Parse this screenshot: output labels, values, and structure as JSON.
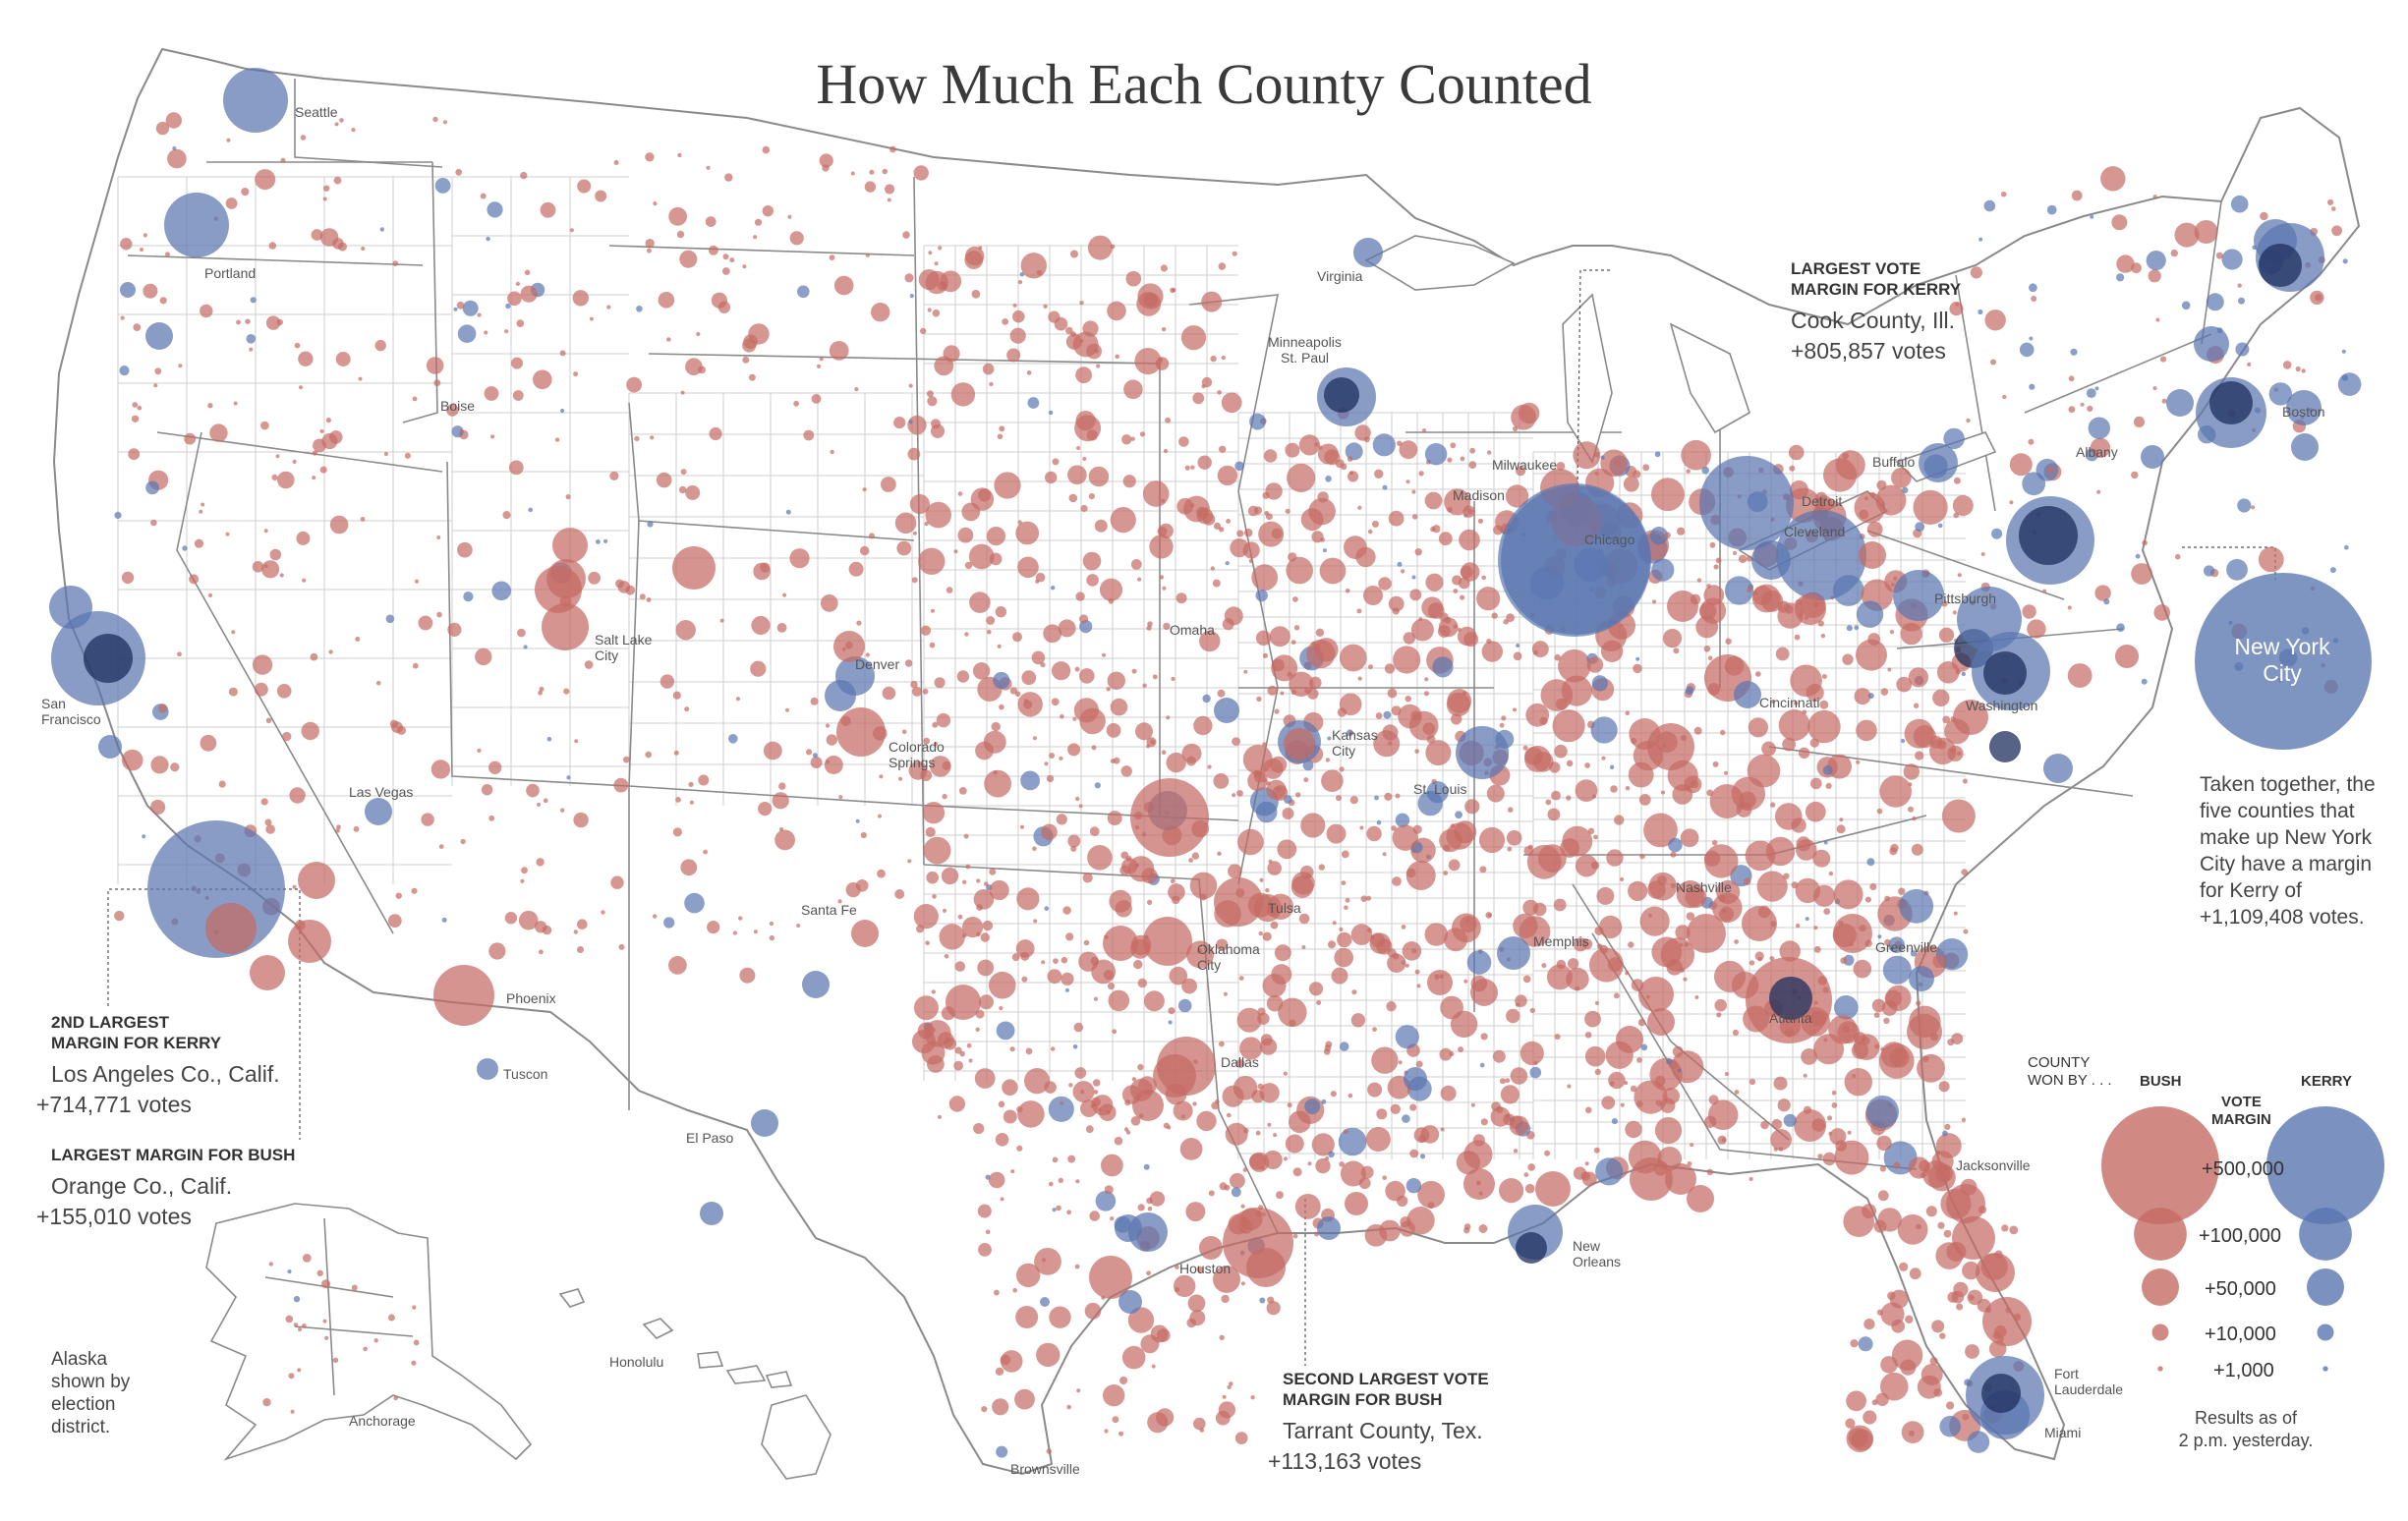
{
  "title": "How Much Each County Counted",
  "colors": {
    "bush": "#c56b64",
    "kerry": "#5a76b0",
    "kerry_dark": "#1d2f5e",
    "border": "#8a8a8a"
  },
  "annotations": {
    "cook": {
      "heading_1": "LARGEST VOTE",
      "heading_2": "MARGIN FOR KERRY",
      "county": "Cook County, Ill.",
      "votes": "+805,857 votes"
    },
    "la": {
      "heading_1": "2ND LARGEST",
      "heading_2": "MARGIN FOR KERRY",
      "county": "Los Angeles Co., Calif.",
      "votes": "+714,771 votes"
    },
    "orange": {
      "heading_1": "LARGEST MARGIN FOR BUSH",
      "county": "Orange Co., Calif.",
      "votes": "+155,010 votes"
    },
    "tarrant": {
      "heading_1": "SECOND LARGEST VOTE",
      "heading_2": "MARGIN FOR BUSH",
      "county": "Tarrant County, Tex.",
      "votes": "+113,163 votes"
    },
    "nyc": {
      "bubble_line1": "New York",
      "bubble_line2": "City",
      "text": "Taken together, the five counties that make up New York City have a margin for Kerry of +1,109,408 votes."
    }
  },
  "alaska_note": [
    "Alaska",
    "shown by",
    "election",
    "district."
  ],
  "cities": [
    {
      "name": "Seattle"
    },
    {
      "name": "Portland"
    },
    {
      "name": "Boise"
    },
    {
      "name": "San Francisco"
    },
    {
      "name": "Salt Lake City"
    },
    {
      "name": "Denver"
    },
    {
      "name": "Colorado Springs"
    },
    {
      "name": "Las Vegas"
    },
    {
      "name": "Phoenix"
    },
    {
      "name": "Tuscon"
    },
    {
      "name": "El Paso"
    },
    {
      "name": "Santa Fe"
    },
    {
      "name": "Virginia"
    },
    {
      "name": "Minneapolis St. Paul"
    },
    {
      "name": "Omaha"
    },
    {
      "name": "Kansas City"
    },
    {
      "name": "St. Louis"
    },
    {
      "name": "Tulsa"
    },
    {
      "name": "Oklahoma City"
    },
    {
      "name": "Dallas"
    },
    {
      "name": "Houston"
    },
    {
      "name": "Brownsville"
    },
    {
      "name": "New Orleans"
    },
    {
      "name": "Memphis"
    },
    {
      "name": "Nashville"
    },
    {
      "name": "Atlanta"
    },
    {
      "name": "Jacksonville"
    },
    {
      "name": "Fort Lauderdale"
    },
    {
      "name": "Miami"
    },
    {
      "name": "Greenville"
    },
    {
      "name": "Chicago"
    },
    {
      "name": "Milwaukee"
    },
    {
      "name": "Madison"
    },
    {
      "name": "Detroit"
    },
    {
      "name": "Cleveland"
    },
    {
      "name": "Cincinnati"
    },
    {
      "name": "Pittsburgh"
    },
    {
      "name": "Washington"
    },
    {
      "name": "Buffalo"
    },
    {
      "name": "Albany"
    },
    {
      "name": "Boston"
    },
    {
      "name": "Honolulu"
    },
    {
      "name": "Anchorage"
    }
  ],
  "legend": {
    "county_won_by_1": "COUNTY",
    "county_won_by_2": "WON BY . . .",
    "bush": "BUSH",
    "kerry": "KERRY",
    "vote_margin_1": "VOTE",
    "vote_margin_2": "MARGIN",
    "tiers": [
      {
        "label": "+500,000",
        "value": 500000
      },
      {
        "label": "+100,000",
        "value": 100000
      },
      {
        "label": "+50,000",
        "value": 50000
      },
      {
        "label": "+10,000",
        "value": 10000
      },
      {
        "label": "+1,000",
        "value": 1000
      }
    ],
    "results_1": "Results as of",
    "results_2": "2 p.m. yesterday."
  }
}
